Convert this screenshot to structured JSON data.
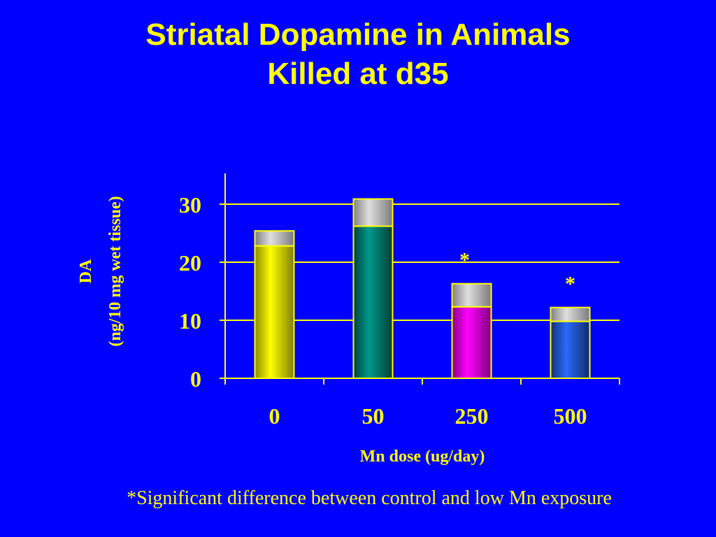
{
  "slide": {
    "title_line1": "Striatal Dopamine in Animals",
    "title_line2": "Killed at d35",
    "footnote": "*Significant difference between control and low Mn exposure"
  },
  "chart_data": {
    "type": "bar",
    "title": "",
    "xlabel": "Mn dose  (ug/day)",
    "ylabel_line1": "DA",
    "ylabel_line2": "(ng/10 mg wet tissue)",
    "categories": [
      "0",
      "50",
      "250",
      "500"
    ],
    "ylim": [
      0,
      35
    ],
    "yticks": [
      0,
      10,
      20,
      30
    ],
    "grid": true,
    "series": [
      {
        "values": [
          22.8,
          26.2,
          12.3,
          9.8
        ],
        "errors": [
          2.6,
          4.7,
          4.0,
          2.4
        ],
        "colors": [
          "#ffff00",
          "#007a6e",
          "#ff00ff",
          "#2255cc"
        ]
      }
    ],
    "error_bar_color": "#b0b0b0",
    "significance": [
      "",
      "",
      "*",
      "*"
    ],
    "axis_color": "#ffff00"
  }
}
